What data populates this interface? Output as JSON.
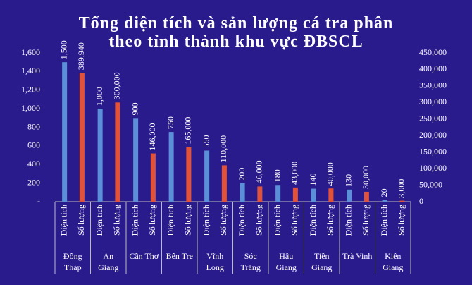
{
  "chart_data": {
    "type": "bar",
    "title": "Tổng diện tích và sản lượng cá tra phân\ntheo  tỉnh thành khu vực ĐBSCL",
    "categories": [
      "Đồng\nTháp",
      "An\nGiang",
      "Cần Thơ",
      "Bến Tre",
      "Vĩnh\nLong",
      "Sóc\nTrăng",
      "Hậu\nGiang",
      "Tiền\nGiang",
      "Trà Vinh",
      "Kiên\nGiang"
    ],
    "series": [
      {
        "name": "Diện tích",
        "color": "#5b8fd8",
        "values": [
          1500,
          1000,
          900,
          750,
          550,
          200,
          180,
          140,
          130,
          20
        ],
        "value_labels": [
          "1,500",
          "1,000",
          "900",
          "750",
          "550",
          "200",
          "180",
          "140",
          "130",
          "20"
        ]
      },
      {
        "name": "Số lượng",
        "color": "#e0533a",
        "axis": "y2",
        "values": [
          389940,
          300000,
          146000,
          165000,
          110000,
          46000,
          43000,
          40000,
          30000,
          3000
        ],
        "value_labels": [
          "389,940",
          "300,000",
          "146,000",
          "165,000",
          "110,000",
          "46,000",
          "43,000",
          "40,000",
          "30,000",
          "3,000"
        ]
      }
    ],
    "ylim": [
      0,
      1600
    ],
    "yticks": [
      {
        "value": 0,
        "label": "-"
      },
      200,
      400,
      600,
      800,
      {
        "value": 1000,
        "label": "1,000"
      },
      {
        "value": 1200,
        "label": "1,200"
      },
      {
        "value": 1400,
        "label": "1,400"
      },
      {
        "value": 1600,
        "label": "1,600"
      }
    ],
    "y2lim": [
      0,
      450000
    ],
    "y2ticks": [
      0,
      {
        "value": 50000,
        "label": "50,000"
      },
      {
        "value": 100000,
        "label": "100,000"
      },
      {
        "value": 150000,
        "label": "150,000"
      },
      {
        "value": 200000,
        "label": "200,000"
      },
      {
        "value": 250000,
        "label": "250,000"
      },
      {
        "value": 300000,
        "label": "300,000"
      },
      {
        "value": 350000,
        "label": "350,000"
      },
      {
        "value": 400000,
        "label": "400,000"
      },
      {
        "value": 450000,
        "label": "450,000"
      }
    ],
    "grid": false
  }
}
